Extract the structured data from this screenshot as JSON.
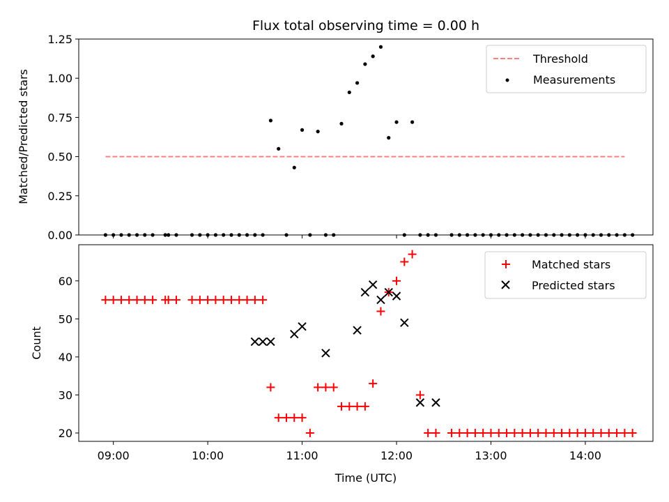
{
  "chart_data": [
    {
      "type": "scatter",
      "title": "Flux total observing time = 0.00 h",
      "xlabel": "",
      "ylabel": "Matched/Predicted stars",
      "xlim": [
        "08:38",
        "14:43"
      ],
      "ylim": [
        0,
        1.25
      ],
      "yticks": [
        0,
        0.25,
        0.5,
        0.75,
        1.0,
        1.25
      ],
      "ytick_labels": [
        "0.00",
        "0.25",
        "0.50",
        "0.75",
        "1.00",
        "1.25"
      ],
      "xtick_positions": [
        "09:00",
        "10:00",
        "11:00",
        "12:00",
        "13:00",
        "14:00"
      ],
      "legend_position": "top-right",
      "series": [
        {
          "name": "Threshold",
          "kind": "dashed-line",
          "color": "#ff7f7f",
          "x": [
            "08:55",
            "14:25"
          ],
          "y": [
            0.5,
            0.5
          ]
        },
        {
          "name": "Measurements",
          "kind": "dot",
          "color": "#000000",
          "x": [
            "08:55",
            "09:00",
            "09:05",
            "09:10",
            "09:15",
            "09:20",
            "09:25",
            "09:33",
            "09:35",
            "09:40",
            "09:50",
            "09:55",
            "10:00",
            "10:05",
            "10:10",
            "10:15",
            "10:20",
            "10:25",
            "10:30",
            "10:35",
            "10:40",
            "10:45",
            "10:50",
            "10:55",
            "11:00",
            "11:05",
            "11:10",
            "11:15",
            "11:20",
            "11:25",
            "11:30",
            "11:35",
            "11:40",
            "11:45",
            "11:50",
            "11:55",
            "12:00",
            "12:05",
            "12:10",
            "12:15",
            "12:20",
            "12:25",
            "12:35",
            "12:40",
            "12:45",
            "12:50",
            "12:55",
            "13:00",
            "13:05",
            "13:10",
            "13:15",
            "13:20",
            "13:25",
            "13:30",
            "13:35",
            "13:40",
            "13:45",
            "13:50",
            "13:55",
            "14:00",
            "14:05",
            "14:10",
            "14:15",
            "14:20",
            "14:25",
            "14:30"
          ],
          "y": [
            0,
            0,
            0,
            0,
            0,
            0,
            0,
            0,
            0,
            0,
            0,
            0,
            0,
            0,
            0,
            0,
            0,
            0,
            0,
            0,
            0.73,
            0.55,
            0,
            0.43,
            0.67,
            0,
            0.66,
            0,
            0,
            0.71,
            0.91,
            0.97,
            1.09,
            1.14,
            1.2,
            0.62,
            0.72,
            0,
            0.72,
            0,
            0,
            0,
            0,
            0,
            0,
            0,
            0,
            0,
            0,
            0,
            0,
            0,
            0,
            0,
            0,
            0,
            0,
            0,
            0,
            0,
            0,
            0,
            0,
            0,
            0,
            0
          ]
        }
      ]
    },
    {
      "type": "scatter",
      "title": "",
      "xlabel": "Time (UTC)",
      "ylabel": "Count",
      "xlim": [
        "08:38",
        "14:43"
      ],
      "ylim": [
        17.8,
        69.5
      ],
      "yticks": [
        20,
        30,
        40,
        50,
        60
      ],
      "ytick_labels": [
        "20",
        "30",
        "40",
        "50",
        "60"
      ],
      "xtick_labels": [
        "09:00",
        "10:00",
        "11:00",
        "12:00",
        "13:00",
        "14:00"
      ],
      "legend_position": "top-right",
      "series": [
        {
          "name": "Matched stars",
          "marker": "plus",
          "color": "#ff0000",
          "x": [
            "08:55",
            "09:00",
            "09:05",
            "09:10",
            "09:15",
            "09:20",
            "09:25",
            "09:33",
            "09:35",
            "09:40",
            "09:50",
            "09:55",
            "10:00",
            "10:05",
            "10:10",
            "10:15",
            "10:20",
            "10:25",
            "10:30",
            "10:35",
            "10:40",
            "10:45",
            "10:50",
            "10:55",
            "11:00",
            "11:05",
            "11:10",
            "11:15",
            "11:20",
            "11:25",
            "11:30",
            "11:35",
            "11:40",
            "11:45",
            "11:50",
            "11:55",
            "12:00",
            "12:05",
            "12:10",
            "12:15",
            "12:20",
            "12:25",
            "12:35",
            "12:40",
            "12:45",
            "12:50",
            "12:55",
            "13:00",
            "13:05",
            "13:10",
            "13:15",
            "13:20",
            "13:25",
            "13:30",
            "13:35",
            "13:40",
            "13:45",
            "13:50",
            "13:55",
            "14:00",
            "14:05",
            "14:10",
            "14:15",
            "14:20",
            "14:25",
            "14:30"
          ],
          "y": [
            55,
            55,
            55,
            55,
            55,
            55,
            55,
            55,
            55,
            55,
            55,
            55,
            55,
            55,
            55,
            55,
            55,
            55,
            55,
            55,
            32,
            24,
            24,
            24,
            24,
            20,
            32,
            32,
            32,
            27,
            27,
            27,
            27,
            33,
            52,
            57,
            60,
            65,
            67,
            30,
            20,
            20,
            20,
            20,
            20,
            20,
            20,
            20,
            20,
            20,
            20,
            20,
            20,
            20,
            20,
            20,
            20,
            20,
            20,
            20,
            20,
            20,
            20,
            20,
            20,
            20
          ]
        },
        {
          "name": "Predicted stars",
          "marker": "x",
          "color": "#000000",
          "x": [
            "10:30",
            "10:35",
            "10:40",
            "10:55",
            "11:00",
            "11:15",
            "11:35",
            "11:40",
            "11:45",
            "11:50",
            "11:55",
            "12:00",
            "12:05",
            "12:15",
            "12:25"
          ],
          "y": [
            44,
            44,
            44,
            46,
            48,
            41,
            47,
            57,
            59,
            55,
            57,
            56,
            49,
            28,
            28
          ]
        }
      ]
    }
  ]
}
